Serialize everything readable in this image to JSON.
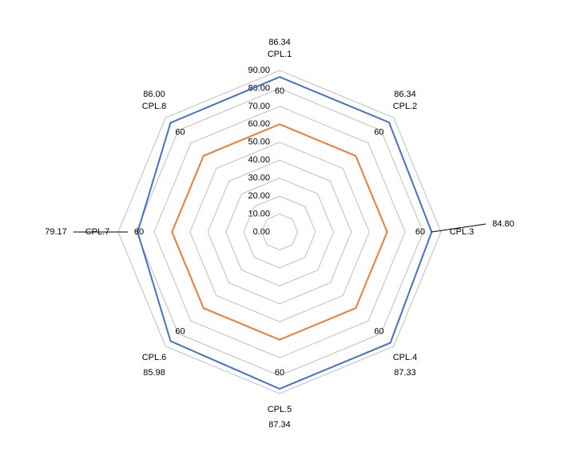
{
  "chart_data": {
    "type": "radar",
    "categories": [
      "CPL.1",
      "CPL.2",
      "CPL.3",
      "CPL.4",
      "CPL.5",
      "CPL.6",
      "CPL.7",
      "CPL.8"
    ],
    "series": [
      {
        "color": "#4472c4",
        "values": [
          86.34,
          86.34,
          84.8,
          87.33,
          87.34,
          85.98,
          79.17,
          86.0
        ],
        "value_labels": [
          "86.34",
          "86.34",
          "84.80",
          "87.33",
          "87.34",
          "85.98",
          "79.17",
          "86.00"
        ]
      },
      {
        "color": "#ed7d31",
        "values": [
          60,
          60,
          60,
          60,
          60,
          60,
          60,
          60
        ]
      }
    ],
    "ylim": [
      0,
      90
    ],
    "yticks": [
      {
        "value": 0,
        "label": "0.00"
      },
      {
        "value": 10,
        "label": "10.00"
      },
      {
        "value": 20,
        "label": "20.00"
      },
      {
        "value": 30,
        "label": "30.00"
      },
      {
        "value": 40,
        "label": "40.00"
      },
      {
        "value": 50,
        "label": "50.00"
      },
      {
        "value": 60,
        "label": "60.00"
      },
      {
        "value": 70,
        "label": "70.00"
      },
      {
        "value": 80,
        "label": "80.00"
      },
      {
        "value": 90,
        "label": "90.00"
      }
    ],
    "grid": true
  }
}
